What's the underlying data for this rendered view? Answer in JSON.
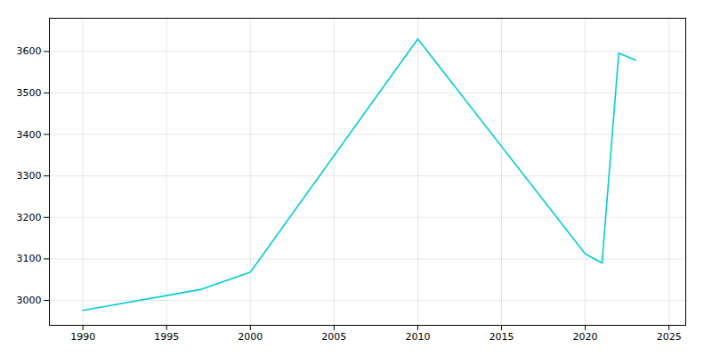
{
  "chart_data": {
    "type": "line",
    "x": [
      1990,
      1997,
      2000,
      2010,
      2020,
      2021,
      2022,
      2023
    ],
    "values": [
      2976,
      3026,
      3068,
      3630,
      3112,
      3090,
      3596,
      3579
    ],
    "color": "#00CED1",
    "xlim": [
      1988,
      2026
    ],
    "ylim": [
      2940,
      3680
    ],
    "xticks": [
      1990,
      1995,
      2000,
      2005,
      2010,
      2015,
      2020,
      2025
    ],
    "yticks": [
      3000,
      3100,
      3200,
      3300,
      3400,
      3500,
      3600
    ],
    "grid": true
  }
}
